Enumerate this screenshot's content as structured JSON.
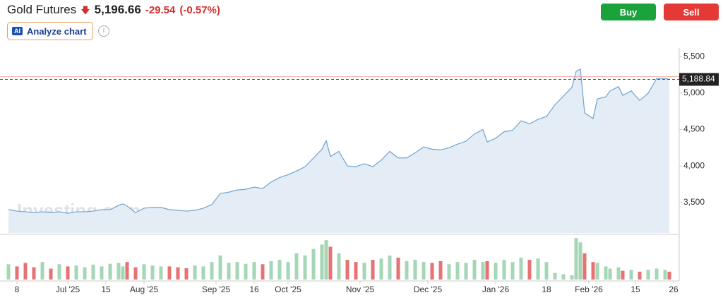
{
  "header": {
    "instrument": "Gold Futures",
    "price": "5,196.66",
    "change": "-29.54",
    "change_pct": "(-0.57%)",
    "analyze": "Analyze chart",
    "buy": "Buy",
    "sell": "Sell"
  },
  "chart_data": [
    {
      "type": "line",
      "watermark": "Investing.com",
      "color": "#6fa3d1",
      "fill": "#e4edf6",
      "x": [
        0,
        2,
        4,
        6,
        8,
        10,
        12,
        14,
        16,
        18,
        20,
        22,
        24,
        26,
        27,
        28,
        30,
        32,
        34,
        36,
        38,
        40,
        42,
        44,
        46,
        48,
        50,
        52,
        54,
        56,
        58,
        60,
        62,
        64,
        66,
        68,
        70,
        72,
        74,
        75,
        76,
        78,
        80,
        82,
        84,
        86,
        88,
        90,
        92,
        94,
        96,
        98,
        100,
        102,
        104,
        106,
        108,
        110,
        112,
        113,
        115,
        117,
        119,
        121,
        123,
        125,
        127,
        129,
        131,
        133,
        134,
        135,
        136,
        138,
        139,
        141,
        142,
        144,
        145,
        147,
        149,
        151,
        153,
        155,
        156
      ],
      "values": [
        3400,
        3380,
        3370,
        3360,
        3370,
        3360,
        3370,
        3350,
        3370,
        3370,
        3380,
        3400,
        3400,
        3460,
        3480,
        3450,
        3360,
        3420,
        3430,
        3430,
        3400,
        3390,
        3380,
        3390,
        3420,
        3470,
        3620,
        3640,
        3670,
        3680,
        3710,
        3690,
        3780,
        3840,
        3880,
        3930,
        3990,
        4110,
        4230,
        4350,
        4130,
        4200,
        4000,
        3990,
        4030,
        3990,
        4080,
        4200,
        4110,
        4110,
        4180,
        4260,
        4230,
        4220,
        4250,
        4300,
        4340,
        4440,
        4500,
        4330,
        4380,
        4470,
        4490,
        4620,
        4580,
        4640,
        4680,
        4840,
        4960,
        5080,
        5300,
        5330,
        4730,
        4650,
        4920,
        4950,
        5030,
        5090,
        4970,
        5030,
        4900,
        5000,
        5200,
        5200,
        5190
      ],
      "xlim": [
        0,
        158
      ],
      "ylim": [
        3080,
        5620
      ],
      "yticks": [
        {
          "value": 3500,
          "label": "3,500"
        },
        {
          "value": 4000,
          "label": "4,000"
        },
        {
          "value": 4500,
          "label": "4,500"
        },
        {
          "value": 5000,
          "label": "5,000"
        },
        {
          "value": 5500,
          "label": "5,500"
        }
      ],
      "xticks": [
        {
          "value": 2,
          "label": "8"
        },
        {
          "value": 14,
          "label": "Jul '25"
        },
        {
          "value": 23,
          "label": "15"
        },
        {
          "value": 32,
          "label": "Aug '25"
        },
        {
          "value": 49,
          "label": "Sep '25"
        },
        {
          "value": 58,
          "label": "16"
        },
        {
          "value": 66,
          "label": "Oct '25"
        },
        {
          "value": 83,
          "label": "Nov '25"
        },
        {
          "value": 99,
          "label": "Dec '25"
        },
        {
          "value": 115,
          "label": "Jan '26"
        },
        {
          "value": 127,
          "label": "18"
        },
        {
          "value": 137,
          "label": "Feb '26"
        },
        {
          "value": 148,
          "label": "15"
        },
        {
          "value": 157,
          "label": "26"
        }
      ],
      "last_price": {
        "value": 5188.84,
        "label": "5,188.84"
      },
      "reference_line": 5226.2
    },
    {
      "type": "bar",
      "x": [
        0,
        2,
        4,
        6,
        8,
        10,
        12,
        14,
        16,
        18,
        20,
        22,
        24,
        26,
        27,
        28,
        30,
        32,
        34,
        36,
        38,
        40,
        42,
        44,
        46,
        48,
        50,
        52,
        54,
        56,
        58,
        60,
        62,
        64,
        66,
        68,
        70,
        72,
        74,
        75,
        76,
        78,
        80,
        82,
        84,
        86,
        88,
        90,
        92,
        94,
        96,
        98,
        100,
        102,
        104,
        106,
        108,
        110,
        112,
        113,
        115,
        117,
        119,
        121,
        123,
        125,
        127,
        129,
        131,
        133,
        134,
        135,
        136,
        138,
        139,
        141,
        142,
        144,
        145,
        147,
        149,
        151,
        153,
        155,
        156
      ],
      "values": [
        35,
        30,
        38,
        28,
        40,
        25,
        35,
        30,
        32,
        28,
        34,
        30,
        36,
        38,
        30,
        40,
        28,
        35,
        32,
        30,
        30,
        28,
        26,
        32,
        30,
        40,
        55,
        38,
        40,
        36,
        40,
        35,
        42,
        45,
        40,
        60,
        55,
        70,
        80,
        90,
        75,
        60,
        45,
        40,
        38,
        45,
        48,
        55,
        50,
        42,
        45,
        40,
        38,
        42,
        35,
        40,
        38,
        45,
        40,
        42,
        38,
        45,
        40,
        50,
        45,
        48,
        40,
        15,
        12,
        10,
        95,
        85,
        60,
        40,
        38,
        30,
        25,
        28,
        20,
        22,
        18,
        22,
        25,
        22,
        18
      ],
      "colors": [
        "#a5d6b5",
        "#e57373",
        "#e57373",
        "#e57373",
        "#a5d6b5",
        "#e57373",
        "#a5d6b5",
        "#e57373",
        "#a5d6b5",
        "#a5d6b5",
        "#a5d6b5",
        "#a5d6b5",
        "#a5d6b5",
        "#a5d6b5",
        "#a5d6b5",
        "#e57373",
        "#e57373",
        "#a5d6b5",
        "#a5d6b5",
        "#a5d6b5",
        "#e57373",
        "#e57373",
        "#e57373",
        "#a5d6b5",
        "#a5d6b5",
        "#a5d6b5",
        "#a5d6b5",
        "#a5d6b5",
        "#a5d6b5",
        "#a5d6b5",
        "#a5d6b5",
        "#e57373",
        "#a5d6b5",
        "#a5d6b5",
        "#a5d6b5",
        "#a5d6b5",
        "#a5d6b5",
        "#a5d6b5",
        "#a5d6b5",
        "#a5d6b5",
        "#e57373",
        "#a5d6b5",
        "#e57373",
        "#e57373",
        "#a5d6b5",
        "#e57373",
        "#a5d6b5",
        "#a5d6b5",
        "#e57373",
        "#a5d6b5",
        "#a5d6b5",
        "#a5d6b5",
        "#e57373",
        "#e57373",
        "#a5d6b5",
        "#a5d6b5",
        "#a5d6b5",
        "#a5d6b5",
        "#a5d6b5",
        "#e57373",
        "#a5d6b5",
        "#a5d6b5",
        "#a5d6b5",
        "#a5d6b5",
        "#e57373",
        "#a5d6b5",
        "#a5d6b5",
        "#a5d6b5",
        "#a5d6b5",
        "#a5d6b5",
        "#a5d6b5",
        "#a5d6b5",
        "#e57373",
        "#e57373",
        "#a5d6b5",
        "#a5d6b5",
        "#a5d6b5",
        "#a5d6b5",
        "#e57373",
        "#a5d6b5",
        "#e57373",
        "#a5d6b5",
        "#a5d6b5",
        "#a5d6b5",
        "#e57373"
      ],
      "xlim": [
        0,
        158
      ],
      "ylim": [
        0,
        100
      ]
    }
  ]
}
